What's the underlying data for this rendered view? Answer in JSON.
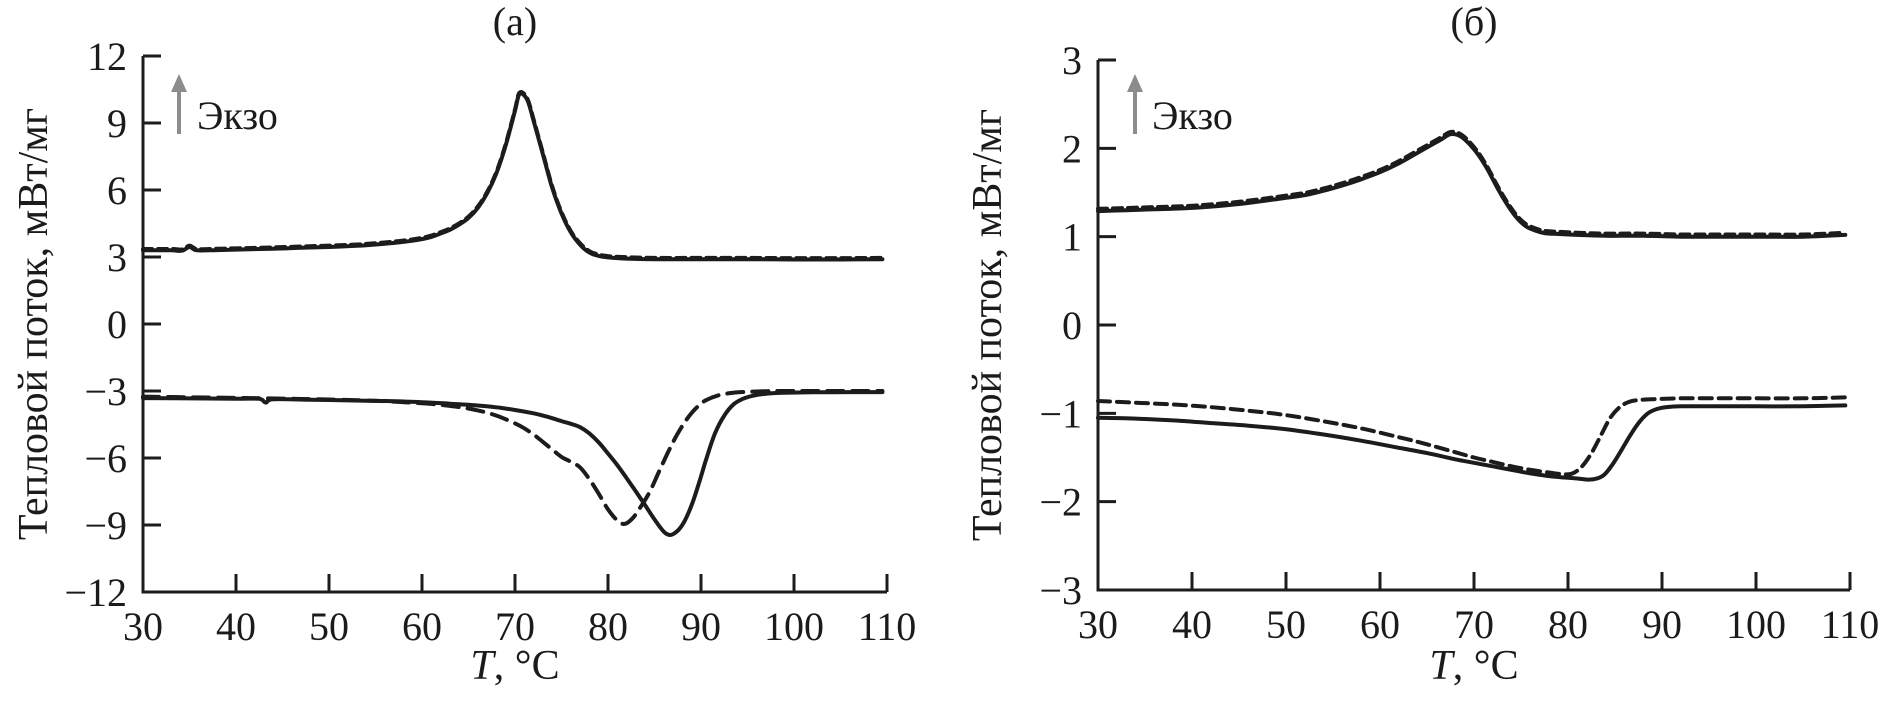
{
  "figure": {
    "background": "#ffffff",
    "text_color": "#1b1b1b",
    "curve_color": "#1c1c1c",
    "arrow_color": "#8c8c8c"
  },
  "chart_data": [
    {
      "type": "line",
      "panel_label": "(а)",
      "xlabel_italic": "T",
      "xlabel_rest": ", °C",
      "ylabel": "Тепловой поток, мВт/мг",
      "annotation": "Экзо",
      "annotation_arrow": "up-arrow",
      "x_range": [
        30,
        110
      ],
      "y_range": [
        -12,
        12
      ],
      "x_ticks": [
        30,
        40,
        50,
        60,
        70,
        80,
        90,
        100,
        110
      ],
      "y_ticks": [
        12,
        9,
        6,
        3,
        0,
        -3,
        -6,
        -9,
        -12
      ],
      "grid": false,
      "legend": "none",
      "series": [
        {
          "name": "heating-solid",
          "style": "solid",
          "points": [
            [
              30,
              3.3
            ],
            [
              33,
              3.3
            ],
            [
              34.2,
              3.28
            ],
            [
              35,
              3.45
            ],
            [
              35.8,
              3.3
            ],
            [
              38,
              3.31
            ],
            [
              41,
              3.34
            ],
            [
              44,
              3.37
            ],
            [
              47,
              3.41
            ],
            [
              50,
              3.45
            ],
            [
              53,
              3.5
            ],
            [
              55,
              3.56
            ],
            [
              57,
              3.63
            ],
            [
              59,
              3.73
            ],
            [
              60,
              3.8
            ],
            [
              61,
              3.9
            ],
            [
              62,
              4.05
            ],
            [
              63,
              4.22
            ],
            [
              64,
              4.45
            ],
            [
              65,
              4.75
            ],
            [
              66,
              5.2
            ],
            [
              67,
              5.85
            ],
            [
              68,
              6.75
            ],
            [
              69,
              8.0
            ],
            [
              70,
              9.55
            ],
            [
              70.5,
              10.3
            ],
            [
              71.3,
              10.05
            ],
            [
              72,
              9.1
            ],
            [
              73,
              7.6
            ],
            [
              74,
              6.1
            ],
            [
              75,
              4.95
            ],
            [
              76,
              4.1
            ],
            [
              77,
              3.55
            ],
            [
              78,
              3.2
            ],
            [
              79,
              3.05
            ],
            [
              80,
              2.98
            ],
            [
              82,
              2.93
            ],
            [
              85,
              2.9
            ],
            [
              90,
              2.9
            ],
            [
              95,
              2.9
            ],
            [
              100,
              2.89
            ],
            [
              105,
              2.89
            ],
            [
              109.5,
              2.9
            ]
          ]
        },
        {
          "name": "heating-dashed",
          "style": "dashed",
          "same_as": 0,
          "dy": 0.06
        },
        {
          "name": "cooling-dashed",
          "style": "dashed",
          "points": [
            [
              30,
              -3.25
            ],
            [
              35,
              -3.28
            ],
            [
              40,
              -3.31
            ],
            [
              45,
              -3.34
            ],
            [
              50,
              -3.38
            ],
            [
              55,
              -3.44
            ],
            [
              58,
              -3.5
            ],
            [
              60,
              -3.55
            ],
            [
              62,
              -3.62
            ],
            [
              64,
              -3.72
            ],
            [
              66,
              -3.87
            ],
            [
              68,
              -4.1
            ],
            [
              70,
              -4.45
            ],
            [
              71,
              -4.67
            ],
            [
              72,
              -4.95
            ],
            [
              73,
              -5.28
            ],
            [
              74,
              -5.62
            ],
            [
              75,
              -5.95
            ],
            [
              76,
              -6.17
            ],
            [
              77,
              -6.42
            ],
            [
              78,
              -6.95
            ],
            [
              79,
              -7.6
            ],
            [
              80,
              -8.3
            ],
            [
              81,
              -8.8
            ],
            [
              81.8,
              -8.95
            ],
            [
              82.6,
              -8.72
            ],
            [
              83.5,
              -8.2
            ],
            [
              84.5,
              -7.5
            ],
            [
              85.5,
              -6.6
            ],
            [
              86.5,
              -5.7
            ],
            [
              87.5,
              -4.9
            ],
            [
              88.5,
              -4.25
            ],
            [
              89.5,
              -3.75
            ],
            [
              90.5,
              -3.42
            ],
            [
              92,
              -3.18
            ],
            [
              94,
              -3.06
            ],
            [
              97,
              -3.01
            ],
            [
              100,
              -3.0
            ],
            [
              105,
              -3.0
            ],
            [
              109.5,
              -3.0
            ]
          ]
        },
        {
          "name": "cooling-solid",
          "style": "solid",
          "points": [
            [
              30,
              -3.32
            ],
            [
              35,
              -3.33
            ],
            [
              40,
              -3.35
            ],
            [
              42.5,
              -3.35
            ],
            [
              43.2,
              -3.52
            ],
            [
              44,
              -3.37
            ],
            [
              48,
              -3.39
            ],
            [
              52,
              -3.42
            ],
            [
              56,
              -3.45
            ],
            [
              60,
              -3.5
            ],
            [
              63,
              -3.57
            ],
            [
              66,
              -3.65
            ],
            [
              68,
              -3.73
            ],
            [
              70,
              -3.85
            ],
            [
              72,
              -4.0
            ],
            [
              73,
              -4.1
            ],
            [
              74,
              -4.22
            ],
            [
              75,
              -4.35
            ],
            [
              76,
              -4.47
            ],
            [
              77,
              -4.62
            ],
            [
              78,
              -4.9
            ],
            [
              79,
              -5.3
            ],
            [
              80,
              -5.8
            ],
            [
              81,
              -6.32
            ],
            [
              82,
              -6.9
            ],
            [
              83,
              -7.5
            ],
            [
              84,
              -8.12
            ],
            [
              85,
              -8.75
            ],
            [
              86,
              -9.3
            ],
            [
              86.7,
              -9.45
            ],
            [
              87.5,
              -9.25
            ],
            [
              88.2,
              -8.85
            ],
            [
              89,
              -8.1
            ],
            [
              89.8,
              -7.1
            ],
            [
              90.6,
              -6.0
            ],
            [
              91.5,
              -4.9
            ],
            [
              92.5,
              -4.1
            ],
            [
              93.5,
              -3.6
            ],
            [
              94.5,
              -3.35
            ],
            [
              95.5,
              -3.22
            ],
            [
              97,
              -3.12
            ],
            [
              99,
              -3.08
            ],
            [
              102,
              -3.06
            ],
            [
              106,
              -3.05
            ],
            [
              109.5,
              -3.05
            ]
          ]
        }
      ]
    },
    {
      "type": "line",
      "panel_label": "(б)",
      "xlabel_italic": "T",
      "xlabel_rest": ", °C",
      "ylabel": "Тепловой поток, мВт/мг",
      "annotation": "Экзо",
      "annotation_arrow": "up-arrow",
      "x_range": [
        30,
        110
      ],
      "y_range": [
        -3,
        3
      ],
      "x_ticks": [
        30,
        40,
        50,
        60,
        70,
        80,
        90,
        100,
        110
      ],
      "y_ticks": [
        3,
        2,
        1,
        0,
        -1,
        -2,
        -3
      ],
      "grid": false,
      "legend": "none",
      "series": [
        {
          "name": "heating-solid",
          "style": "solid",
          "points": [
            [
              30,
              1.29
            ],
            [
              33,
              1.3
            ],
            [
              36,
              1.31
            ],
            [
              39,
              1.32
            ],
            [
              42,
              1.34
            ],
            [
              45,
              1.37
            ],
            [
              48,
              1.41
            ],
            [
              50,
              1.44
            ],
            [
              52,
              1.47
            ],
            [
              54,
              1.52
            ],
            [
              56,
              1.58
            ],
            [
              58,
              1.65
            ],
            [
              60,
              1.73
            ],
            [
              62,
              1.83
            ],
            [
              64,
              1.95
            ],
            [
              65.5,
              2.04
            ],
            [
              66.5,
              2.1
            ],
            [
              67.5,
              2.16
            ],
            [
              68.5,
              2.14
            ],
            [
              69.5,
              2.05
            ],
            [
              70.5,
              1.92
            ],
            [
              71.5,
              1.75
            ],
            [
              72.5,
              1.55
            ],
            [
              73.5,
              1.37
            ],
            [
              74.5,
              1.22
            ],
            [
              75.5,
              1.12
            ],
            [
              76.5,
              1.07
            ],
            [
              77.5,
              1.04
            ],
            [
              79,
              1.03
            ],
            [
              81,
              1.02
            ],
            [
              84,
              1.01
            ],
            [
              88,
              1.01
            ],
            [
              92,
              1.0
            ],
            [
              96,
              1.0
            ],
            [
              100,
              1.0
            ],
            [
              105,
              1.0
            ],
            [
              109.5,
              1.02
            ]
          ]
        },
        {
          "name": "heating-dashed",
          "style": "dashed",
          "same_as": 0,
          "dy": 0.025
        },
        {
          "name": "cooling-dashed",
          "style": "dashed",
          "points": [
            [
              30,
              -0.86
            ],
            [
              34,
              -0.88
            ],
            [
              38,
              -0.9
            ],
            [
              42,
              -0.93
            ],
            [
              46,
              -0.97
            ],
            [
              50,
              -1.02
            ],
            [
              54,
              -1.09
            ],
            [
              58,
              -1.17
            ],
            [
              62,
              -1.27
            ],
            [
              65,
              -1.35
            ],
            [
              68,
              -1.44
            ],
            [
              70,
              -1.5
            ],
            [
              72,
              -1.55
            ],
            [
              74,
              -1.6
            ],
            [
              76,
              -1.64
            ],
            [
              78,
              -1.67
            ],
            [
              79.5,
              -1.69
            ],
            [
              80.5,
              -1.68
            ],
            [
              81.5,
              -1.6
            ],
            [
              82.5,
              -1.45
            ],
            [
              83.5,
              -1.25
            ],
            [
              84.5,
              -1.05
            ],
            [
              85.5,
              -0.93
            ],
            [
              86.5,
              -0.87
            ],
            [
              87.5,
              -0.85
            ],
            [
              89,
              -0.84
            ],
            [
              92,
              -0.83
            ],
            [
              96,
              -0.83
            ],
            [
              100,
              -0.83
            ],
            [
              105,
              -0.83
            ],
            [
              109.5,
              -0.82
            ]
          ]
        },
        {
          "name": "cooling-solid",
          "style": "solid",
          "points": [
            [
              30,
              -1.05
            ],
            [
              34,
              -1.06
            ],
            [
              38,
              -1.08
            ],
            [
              42,
              -1.11
            ],
            [
              46,
              -1.14
            ],
            [
              50,
              -1.18
            ],
            [
              54,
              -1.24
            ],
            [
              58,
              -1.31
            ],
            [
              62,
              -1.39
            ],
            [
              65,
              -1.45
            ],
            [
              68,
              -1.52
            ],
            [
              70,
              -1.56
            ],
            [
              72,
              -1.6
            ],
            [
              74,
              -1.64
            ],
            [
              76,
              -1.68
            ],
            [
              78,
              -1.71
            ],
            [
              80,
              -1.73
            ],
            [
              81.2,
              -1.74
            ],
            [
              82.2,
              -1.75
            ],
            [
              83,
              -1.74
            ],
            [
              83.8,
              -1.7
            ],
            [
              84.6,
              -1.6
            ],
            [
              85.5,
              -1.45
            ],
            [
              86.5,
              -1.27
            ],
            [
              87.5,
              -1.11
            ],
            [
              88.5,
              -1.0
            ],
            [
              89.5,
              -0.95
            ],
            [
              90.5,
              -0.93
            ],
            [
              92,
              -0.92
            ],
            [
              95,
              -0.92
            ],
            [
              100,
              -0.92
            ],
            [
              105,
              -0.92
            ],
            [
              109.5,
              -0.91
            ]
          ]
        }
      ]
    }
  ]
}
